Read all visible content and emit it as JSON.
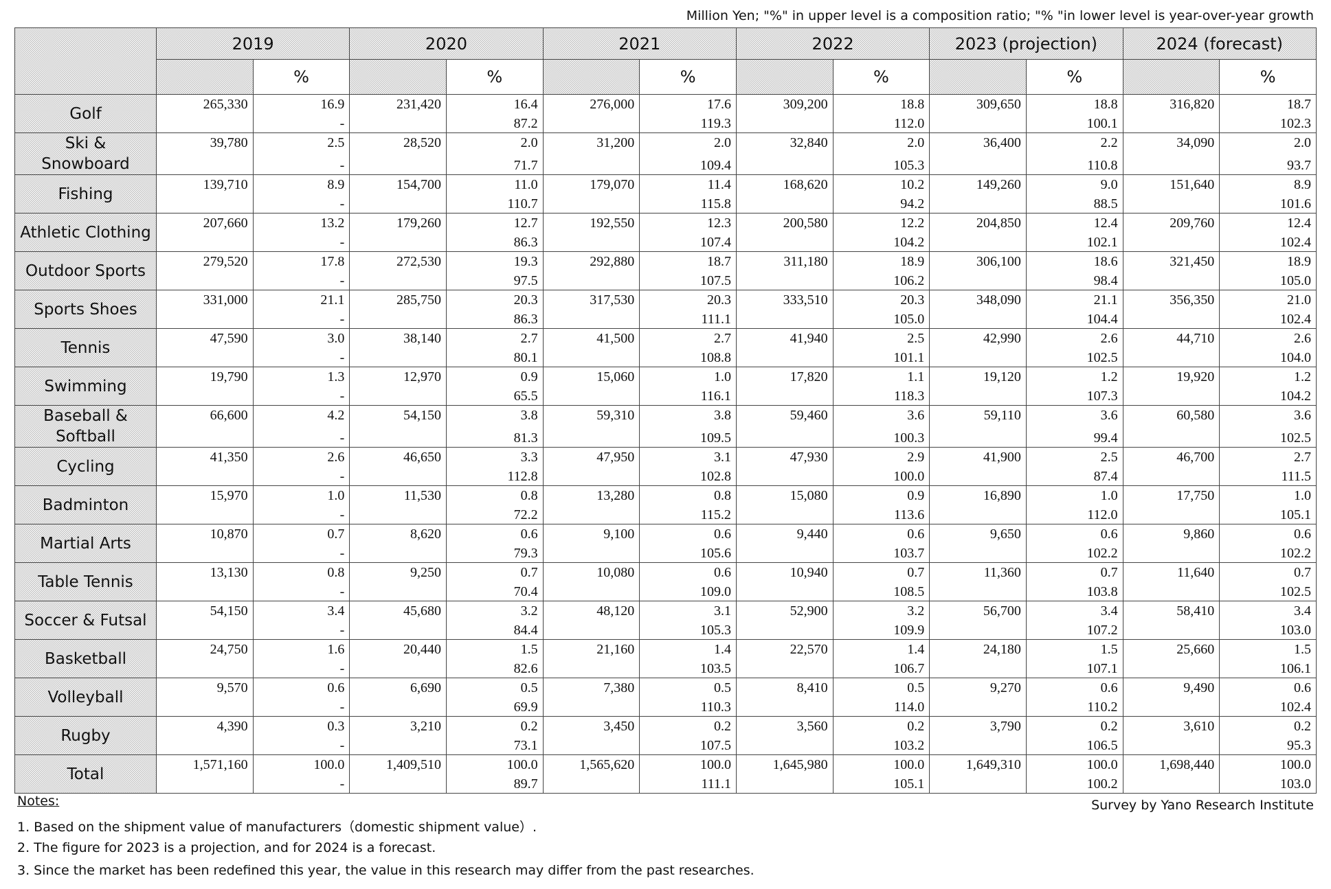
{
  "unit_note": "Million Yen; \"%\" in upper level is a composition ratio; \"% \"in lower level is year-over-year growth",
  "header": {
    "years": [
      "2019",
      "2020",
      "2021",
      "2022",
      "2023 (projection)",
      "2024 (forecast)"
    ],
    "pct_label": "%"
  },
  "rows": [
    {
      "label": [
        "Golf"
      ],
      "cells": [
        [
          "265,330",
          "16.9",
          "-"
        ],
        [
          "231,420",
          "16.4",
          "87.2"
        ],
        [
          "276,000",
          "17.6",
          "119.3"
        ],
        [
          "309,200",
          "18.8",
          "112.0"
        ],
        [
          "309,650",
          "18.8",
          "100.1"
        ],
        [
          "316,820",
          "18.7",
          "102.3"
        ]
      ]
    },
    {
      "label": [
        "Ski &",
        "Snowboard"
      ],
      "cells": [
        [
          "39,780",
          "2.5",
          "-"
        ],
        [
          "28,520",
          "2.0",
          "71.7"
        ],
        [
          "31,200",
          "2.0",
          "109.4"
        ],
        [
          "32,840",
          "2.0",
          "105.3"
        ],
        [
          "36,400",
          "2.2",
          "110.8"
        ],
        [
          "34,090",
          "2.0",
          "93.7"
        ]
      ]
    },
    {
      "label": [
        "Fishing"
      ],
      "cells": [
        [
          "139,710",
          "8.9",
          "-"
        ],
        [
          "154,700",
          "11.0",
          "110.7"
        ],
        [
          "179,070",
          "11.4",
          "115.8"
        ],
        [
          "168,620",
          "10.2",
          "94.2"
        ],
        [
          "149,260",
          "9.0",
          "88.5"
        ],
        [
          "151,640",
          "8.9",
          "101.6"
        ]
      ]
    },
    {
      "label": [
        "Athletic Clothing"
      ],
      "cells": [
        [
          "207,660",
          "13.2",
          "-"
        ],
        [
          "179,260",
          "12.7",
          "86.3"
        ],
        [
          "192,550",
          "12.3",
          "107.4"
        ],
        [
          "200,580",
          "12.2",
          "104.2"
        ],
        [
          "204,850",
          "12.4",
          "102.1"
        ],
        [
          "209,760",
          "12.4",
          "102.4"
        ]
      ]
    },
    {
      "label": [
        "Outdoor Sports"
      ],
      "cells": [
        [
          "279,520",
          "17.8",
          "-"
        ],
        [
          "272,530",
          "19.3",
          "97.5"
        ],
        [
          "292,880",
          "18.7",
          "107.5"
        ],
        [
          "311,180",
          "18.9",
          "106.2"
        ],
        [
          "306,100",
          "18.6",
          "98.4"
        ],
        [
          "321,450",
          "18.9",
          "105.0"
        ]
      ]
    },
    {
      "label": [
        "Sports Shoes"
      ],
      "cells": [
        [
          "331,000",
          "21.1",
          "-"
        ],
        [
          "285,750",
          "20.3",
          "86.3"
        ],
        [
          "317,530",
          "20.3",
          "111.1"
        ],
        [
          "333,510",
          "20.3",
          "105.0"
        ],
        [
          "348,090",
          "21.1",
          "104.4"
        ],
        [
          "356,350",
          "21.0",
          "102.4"
        ]
      ]
    },
    {
      "label": [
        "Tennis"
      ],
      "cells": [
        [
          "47,590",
          "3.0",
          "-"
        ],
        [
          "38,140",
          "2.7",
          "80.1"
        ],
        [
          "41,500",
          "2.7",
          "108.8"
        ],
        [
          "41,940",
          "2.5",
          "101.1"
        ],
        [
          "42,990",
          "2.6",
          "102.5"
        ],
        [
          "44,710",
          "2.6",
          "104.0"
        ]
      ]
    },
    {
      "label": [
        "Swimming"
      ],
      "cells": [
        [
          "19,790",
          "1.3",
          "-"
        ],
        [
          "12,970",
          "0.9",
          "65.5"
        ],
        [
          "15,060",
          "1.0",
          "116.1"
        ],
        [
          "17,820",
          "1.1",
          "118.3"
        ],
        [
          "19,120",
          "1.2",
          "107.3"
        ],
        [
          "19,920",
          "1.2",
          "104.2"
        ]
      ]
    },
    {
      "label": [
        "Baseball &",
        "Softball"
      ],
      "cells": [
        [
          "66,600",
          "4.2",
          "-"
        ],
        [
          "54,150",
          "3.8",
          "81.3"
        ],
        [
          "59,310",
          "3.8",
          "109.5"
        ],
        [
          "59,460",
          "3.6",
          "100.3"
        ],
        [
          "59,110",
          "3.6",
          "99.4"
        ],
        [
          "60,580",
          "3.6",
          "102.5"
        ]
      ]
    },
    {
      "label": [
        "Cycling"
      ],
      "cells": [
        [
          "41,350",
          "2.6",
          "-"
        ],
        [
          "46,650",
          "3.3",
          "112.8"
        ],
        [
          "47,950",
          "3.1",
          "102.8"
        ],
        [
          "47,930",
          "2.9",
          "100.0"
        ],
        [
          "41,900",
          "2.5",
          "87.4"
        ],
        [
          "46,700",
          "2.7",
          "111.5"
        ]
      ]
    },
    {
      "label": [
        "Badminton"
      ],
      "cells": [
        [
          "15,970",
          "1.0",
          "-"
        ],
        [
          "11,530",
          "0.8",
          "72.2"
        ],
        [
          "13,280",
          "0.8",
          "115.2"
        ],
        [
          "15,080",
          "0.9",
          "113.6"
        ],
        [
          "16,890",
          "1.0",
          "112.0"
        ],
        [
          "17,750",
          "1.0",
          "105.1"
        ]
      ]
    },
    {
      "label": [
        "Martial Arts"
      ],
      "cells": [
        [
          "10,870",
          "0.7",
          "-"
        ],
        [
          "8,620",
          "0.6",
          "79.3"
        ],
        [
          "9,100",
          "0.6",
          "105.6"
        ],
        [
          "9,440",
          "0.6",
          "103.7"
        ],
        [
          "9,650",
          "0.6",
          "102.2"
        ],
        [
          "9,860",
          "0.6",
          "102.2"
        ]
      ]
    },
    {
      "label": [
        "Table Tennis"
      ],
      "cells": [
        [
          "13,130",
          "0.8",
          "-"
        ],
        [
          "9,250",
          "0.7",
          "70.4"
        ],
        [
          "10,080",
          "0.6",
          "109.0"
        ],
        [
          "10,940",
          "0.7",
          "108.5"
        ],
        [
          "11,360",
          "0.7",
          "103.8"
        ],
        [
          "11,640",
          "0.7",
          "102.5"
        ]
      ]
    },
    {
      "label": [
        "Soccer & Futsal"
      ],
      "cells": [
        [
          "54,150",
          "3.4",
          "-"
        ],
        [
          "45,680",
          "3.2",
          "84.4"
        ],
        [
          "48,120",
          "3.1",
          "105.3"
        ],
        [
          "52,900",
          "3.2",
          "109.9"
        ],
        [
          "56,700",
          "3.4",
          "107.2"
        ],
        [
          "58,410",
          "3.4",
          "103.0"
        ]
      ]
    },
    {
      "label": [
        "Basketball"
      ],
      "cells": [
        [
          "24,750",
          "1.6",
          "-"
        ],
        [
          "20,440",
          "1.5",
          "82.6"
        ],
        [
          "21,160",
          "1.4",
          "103.5"
        ],
        [
          "22,570",
          "1.4",
          "106.7"
        ],
        [
          "24,180",
          "1.5",
          "107.1"
        ],
        [
          "25,660",
          "1.5",
          "106.1"
        ]
      ]
    },
    {
      "label": [
        "Volleyball"
      ],
      "cells": [
        [
          "9,570",
          "0.6",
          "-"
        ],
        [
          "6,690",
          "0.5",
          "69.9"
        ],
        [
          "7,380",
          "0.5",
          "110.3"
        ],
        [
          "8,410",
          "0.5",
          "114.0"
        ],
        [
          "9,270",
          "0.6",
          "110.2"
        ],
        [
          "9,490",
          "0.6",
          "102.4"
        ]
      ]
    },
    {
      "label": [
        "Rugby"
      ],
      "cells": [
        [
          "4,390",
          "0.3",
          "-"
        ],
        [
          "3,210",
          "0.2",
          "73.1"
        ],
        [
          "3,450",
          "0.2",
          "107.5"
        ],
        [
          "3,560",
          "0.2",
          "103.2"
        ],
        [
          "3,790",
          "0.2",
          "106.5"
        ],
        [
          "3,610",
          "0.2",
          "95.3"
        ]
      ]
    },
    {
      "label": [
        "Total"
      ],
      "cells": [
        [
          "1,571,160",
          "100.0",
          "-"
        ],
        [
          "1,409,510",
          "100.0",
          "89.7"
        ],
        [
          "1,565,620",
          "100.0",
          "111.1"
        ],
        [
          "1,645,980",
          "100.0",
          "105.1"
        ],
        [
          "1,649,310",
          "100.0",
          "100.2"
        ],
        [
          "1,698,440",
          "100.0",
          "103.0"
        ]
      ]
    }
  ],
  "notes": {
    "title": "Notes:",
    "items": [
      "1. Based on the shipment value of manufacturers（domestic shipment value）.",
      "2. The figure for 2023 is a projection, and for 2024 is a forecast.",
      "3. Since the market has been redefined this year, the value in this research may differ from the past researches."
    ]
  },
  "source": "Survey by Yano Research Institute"
}
